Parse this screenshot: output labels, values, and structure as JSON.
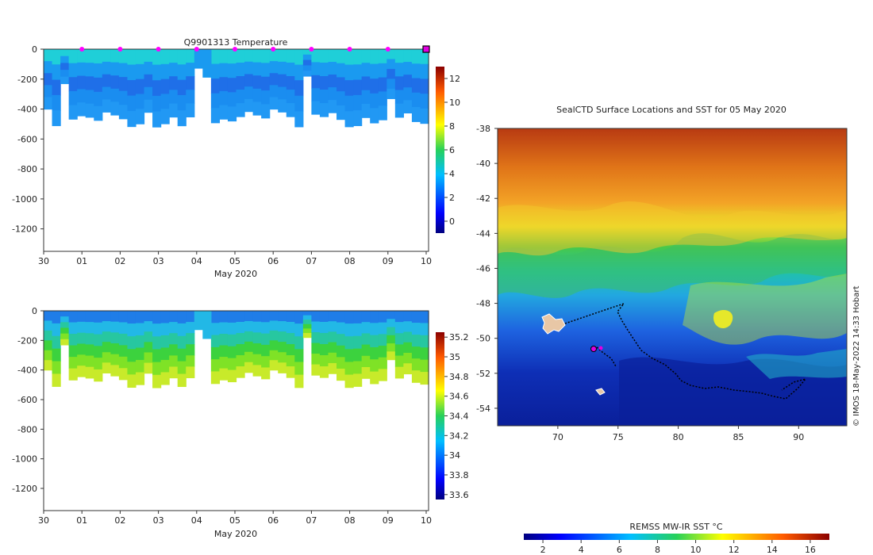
{
  "chart_data": [
    {
      "type": "heatmap",
      "title": "Q9901313  Temperature",
      "xlabel": "May 2020",
      "x_ticks": [
        "30",
        "01",
        "02",
        "03",
        "04",
        "05",
        "06",
        "07",
        "08",
        "09",
        "10"
      ],
      "y_ticks": [
        "0",
        "-200",
        "-400",
        "-600",
        "-800",
        "-1000",
        "-1200"
      ],
      "ylim": [
        -1350,
        0
      ],
      "colorbar_ticks": [
        "0",
        "2",
        "4",
        "6",
        "8",
        "10",
        "12"
      ],
      "colorbar_range": [
        -1,
        13
      ]
    },
    {
      "type": "heatmap",
      "title": "",
      "xlabel": "May 2020",
      "x_ticks": [
        "30",
        "01",
        "02",
        "03",
        "04",
        "05",
        "06",
        "07",
        "08",
        "09",
        "10"
      ],
      "y_ticks": [
        "0",
        "-200",
        "-400",
        "-600",
        "-800",
        "-1000",
        "-1200"
      ],
      "ylim": [
        -1350,
        0
      ],
      "colorbar_ticks": [
        "33.6",
        "33.8",
        "34",
        "34.2",
        "34.4",
        "34.6",
        "34.8",
        "35",
        "35.2"
      ],
      "colorbar_range": [
        33.55,
        35.25
      ]
    },
    {
      "type": "heatmap",
      "title": "SealCTD Surface Locations and SST for 05 May 2020",
      "x_ticks": [
        "70",
        "75",
        "80",
        "85",
        "90"
      ],
      "y_ticks": [
        "-38",
        "-40",
        "-42",
        "-44",
        "-46",
        "-48",
        "-50",
        "-52",
        "-54"
      ],
      "xlim": [
        65,
        94
      ],
      "ylim": [
        -55,
        -38
      ],
      "colorbar_label": "REMSS MW-IR SST °C",
      "colorbar_ticks": [
        "2",
        "4",
        "6",
        "8",
        "10",
        "12",
        "14",
        "16"
      ],
      "colorbar_range": [
        1,
        17
      ],
      "credit": "© IMOS 18-May-2022 14:33 Hobart"
    }
  ],
  "colors": {
    "ocean_deep": "#0a1f9a",
    "ocean_cool": "#1e63e0",
    "water_mid": "#1fb8d6",
    "land": "#e8c7a6"
  }
}
